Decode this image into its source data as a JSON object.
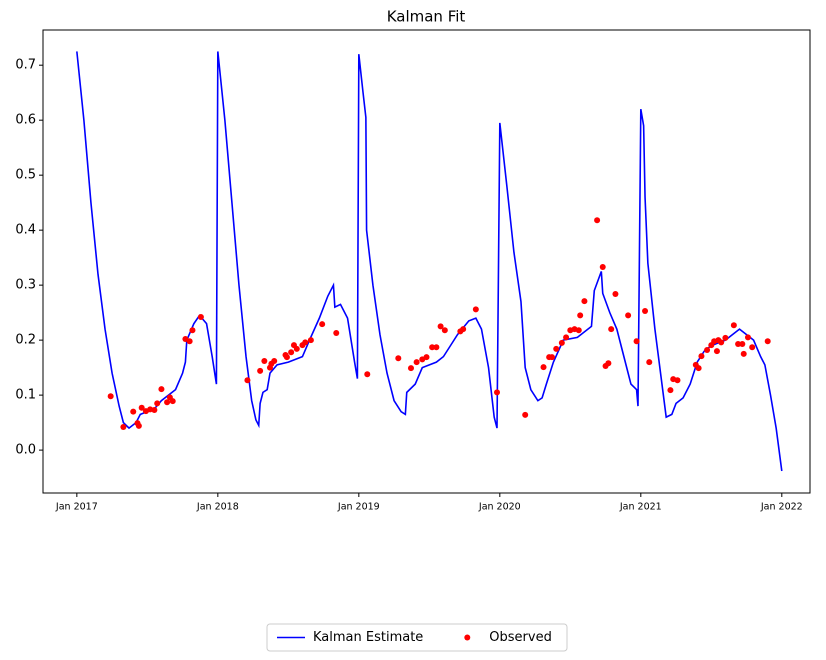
{
  "chart_data": {
    "type": "line",
    "title": "Kalman Fit",
    "xlim": [
      2016.76,
      2022.2
    ],
    "ylim": [
      -0.078,
      0.764
    ],
    "xticks": [
      {
        "value": 2017,
        "label": "Jan 2017"
      },
      {
        "value": 2018,
        "label": "Jan 2018"
      },
      {
        "value": 2019,
        "label": "Jan 2019"
      },
      {
        "value": 2020,
        "label": "Jan 2020"
      },
      {
        "value": 2021,
        "label": "Jan 2021"
      },
      {
        "value": 2022,
        "label": "Jan 2022"
      }
    ],
    "yticks": [
      {
        "value": 0,
        "label": "0.0"
      },
      0.1,
      0.2,
      0.3,
      0.4,
      0.5,
      0.6,
      0.7
    ],
    "legend": "bottom",
    "series": [
      {
        "name": "Kalman Estimate",
        "type": "line",
        "color": "#0000ff",
        "x": [
          2017.0,
          2017.05,
          2017.1,
          2017.15,
          2017.2,
          2017.25,
          2017.3,
          2017.33,
          2017.37,
          2017.42,
          2017.45,
          2017.5,
          2017.55,
          2017.6,
          2017.65,
          2017.7,
          2017.75,
          2017.77,
          2017.78,
          2017.83,
          2017.87,
          2017.92,
          2017.96,
          2017.99,
          2018.0,
          2018.05,
          2018.1,
          2018.15,
          2018.2,
          2018.24,
          2018.27,
          2018.29,
          2018.3,
          2018.32,
          2018.35,
          2018.37,
          2018.42,
          2018.5,
          2018.55,
          2018.6,
          2018.65,
          2018.72,
          2018.78,
          2018.82,
          2018.83,
          2018.87,
          2018.92,
          2018.97,
          2018.99,
          2019.0,
          2019.03,
          2019.05,
          2019.055,
          2019.1,
          2019.15,
          2019.2,
          2019.25,
          2019.3,
          2019.33,
          2019.34,
          2019.4,
          2019.45,
          2019.5,
          2019.55,
          2019.6,
          2019.65,
          2019.7,
          2019.78,
          2019.83,
          2019.87,
          2019.92,
          2019.96,
          2019.98,
          2020.0,
          2020.05,
          2020.1,
          2020.15,
          2020.18,
          2020.22,
          2020.27,
          2020.3,
          2020.33,
          2020.38,
          2020.45,
          2020.55,
          2020.65,
          2020.67,
          2020.72,
          2020.73,
          2020.78,
          2020.83,
          2020.88,
          2020.93,
          2020.97,
          2020.98,
          2021.0,
          2021.02,
          2021.03,
          2021.05,
          2021.1,
          2021.15,
          2021.18,
          2021.22,
          2021.25,
          2021.3,
          2021.35,
          2021.4,
          2021.45,
          2021.5,
          2021.55,
          2021.6,
          2021.65,
          2021.7,
          2021.75,
          2021.8,
          2021.85,
          2021.88,
          2021.92,
          2021.96,
          2022.0
        ],
        "values": [
          0.725,
          0.6,
          0.45,
          0.32,
          0.22,
          0.14,
          0.08,
          0.05,
          0.04,
          0.05,
          0.065,
          0.07,
          0.075,
          0.09,
          0.1,
          0.11,
          0.14,
          0.16,
          0.2,
          0.23,
          0.245,
          0.23,
          0.17,
          0.12,
          0.725,
          0.6,
          0.45,
          0.3,
          0.17,
          0.09,
          0.055,
          0.045,
          0.085,
          0.105,
          0.11,
          0.14,
          0.155,
          0.16,
          0.165,
          0.17,
          0.2,
          0.24,
          0.28,
          0.3,
          0.26,
          0.265,
          0.24,
          0.16,
          0.13,
          0.72,
          0.65,
          0.605,
          0.4,
          0.3,
          0.21,
          0.14,
          0.09,
          0.07,
          0.065,
          0.105,
          0.12,
          0.15,
          0.155,
          0.16,
          0.17,
          0.19,
          0.21,
          0.235,
          0.24,
          0.22,
          0.15,
          0.06,
          0.04,
          0.595,
          0.48,
          0.36,
          0.27,
          0.15,
          0.11,
          0.09,
          0.095,
          0.12,
          0.16,
          0.2,
          0.205,
          0.225,
          0.29,
          0.325,
          0.285,
          0.25,
          0.22,
          0.17,
          0.12,
          0.11,
          0.08,
          0.62,
          0.59,
          0.46,
          0.34,
          0.22,
          0.12,
          0.06,
          0.065,
          0.085,
          0.095,
          0.12,
          0.16,
          0.18,
          0.19,
          0.195,
          0.2,
          0.21,
          0.22,
          0.21,
          0.2,
          0.17,
          0.155,
          0.1,
          0.04,
          -0.038
        ]
      },
      {
        "name": "Observed",
        "type": "scatter",
        "color": "#ff0000",
        "x": [
          2017.24,
          2017.33,
          2017.4,
          2017.43,
          2017.44,
          2017.46,
          2017.49,
          2017.52,
          2017.55,
          2017.57,
          2017.6,
          2017.64,
          2017.66,
          2017.68,
          2017.77,
          2017.8,
          2017.82,
          2017.88,
          2018.21,
          2018.3,
          2018.33,
          2018.37,
          2018.38,
          2018.4,
          2018.48,
          2018.49,
          2018.52,
          2018.54,
          2018.56,
          2018.6,
          2018.62,
          2018.66,
          2018.74,
          2018.84,
          2019.06,
          2019.28,
          2019.37,
          2019.41,
          2019.45,
          2019.48,
          2019.52,
          2019.55,
          2019.58,
          2019.61,
          2019.72,
          2019.74,
          2019.83,
          2019.98,
          2020.18,
          2020.31,
          2020.35,
          2020.37,
          2020.4,
          2020.44,
          2020.47,
          2020.5,
          2020.53,
          2020.56,
          2020.57,
          2020.6,
          2020.69,
          2020.73,
          2020.75,
          2020.77,
          2020.79,
          2020.82,
          2020.91,
          2020.97,
          2021.03,
          2021.06,
          2021.21,
          2021.23,
          2021.26,
          2021.39,
          2021.41,
          2021.43,
          2021.47,
          2021.5,
          2021.52,
          2021.54,
          2021.55,
          2021.57,
          2021.6,
          2021.66,
          2021.69,
          2021.72,
          2021.73,
          2021.76,
          2021.79,
          2021.9
        ],
        "values": [
          0.098,
          0.042,
          0.07,
          0.049,
          0.044,
          0.077,
          0.071,
          0.074,
          0.073,
          0.085,
          0.111,
          0.087,
          0.096,
          0.089,
          0.202,
          0.198,
          0.218,
          0.242,
          0.127,
          0.144,
          0.162,
          0.15,
          0.157,
          0.162,
          0.173,
          0.169,
          0.178,
          0.191,
          0.184,
          0.191,
          0.196,
          0.2,
          0.229,
          0.213,
          0.138,
          0.167,
          0.149,
          0.16,
          0.165,
          0.169,
          0.187,
          0.187,
          0.225,
          0.218,
          0.216,
          0.22,
          0.256,
          0.105,
          0.064,
          0.151,
          0.169,
          0.169,
          0.184,
          0.195,
          0.205,
          0.218,
          0.22,
          0.218,
          0.245,
          0.271,
          0.418,
          0.333,
          0.153,
          0.158,
          0.22,
          0.284,
          0.245,
          0.198,
          0.253,
          0.16,
          0.109,
          0.129,
          0.127,
          0.155,
          0.149,
          0.171,
          0.182,
          0.191,
          0.198,
          0.18,
          0.2,
          0.196,
          0.204,
          0.227,
          0.193,
          0.193,
          0.175,
          0.205,
          0.187,
          0.198
        ]
      }
    ]
  }
}
